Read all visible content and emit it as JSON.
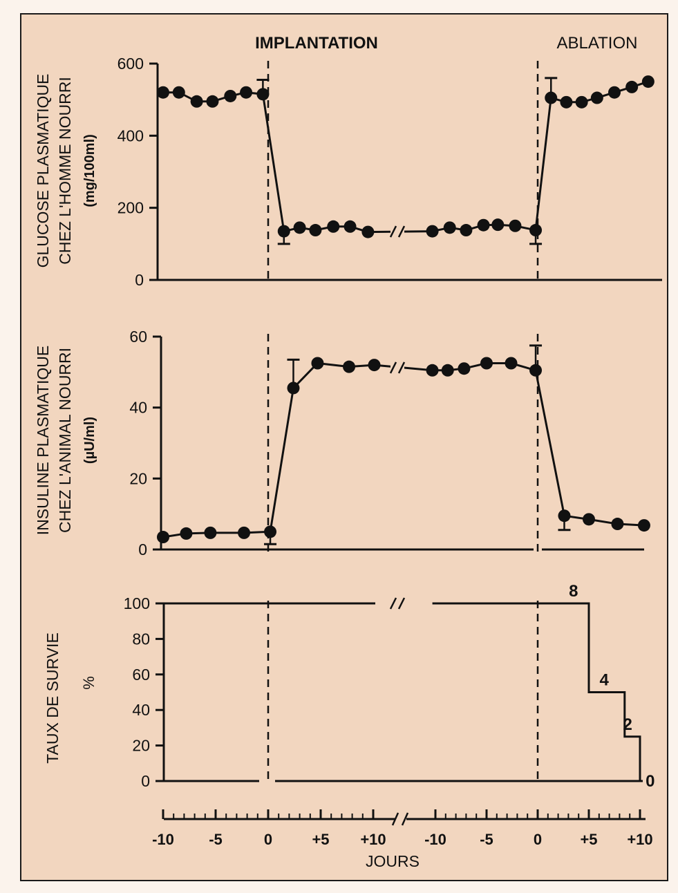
{
  "colors": {
    "background": "#f2d6bf",
    "ink": "#111111",
    "frame": "#1a1a1a"
  },
  "header": {
    "implantation": "IMPLANTATION",
    "ablation": "ABLATION"
  },
  "panels": {
    "glucose": {
      "ylabel_line1": "GLUCOSE PLASMATIQUE",
      "ylabel_line2": "CHEZ L'HOMME NOURRI",
      "unit": "(mg/100ml)"
    },
    "insulin": {
      "ylabel_line1": "INSULINE PLASMATIQUE",
      "ylabel_line2": "CHEZ L'ANIMAL NOURRI",
      "unit": "(µU/ml)"
    },
    "survival": {
      "ylabel_line1": "TAUX DE SURVIE",
      "unit": "%"
    }
  },
  "xaxis": {
    "title": "JOURS",
    "ticks": [
      "-10",
      "-5",
      "0",
      "+5",
      "+10",
      "-10",
      "-5",
      "0",
      "+5",
      "+10"
    ]
  },
  "chart_data": [
    {
      "type": "line",
      "name": "glucose",
      "ylim": [
        0,
        600
      ],
      "yticks": [
        "0",
        "200",
        "400",
        "600"
      ],
      "note": "two-segment time axis with break",
      "points": [
        {
          "seg": 1,
          "x": -10,
          "y": 520
        },
        {
          "seg": 1,
          "x": -8.5,
          "y": 520
        },
        {
          "seg": 1,
          "x": -6.8,
          "y": 495
        },
        {
          "seg": 1,
          "x": -5.3,
          "y": 495
        },
        {
          "seg": 1,
          "x": -3.6,
          "y": 510
        },
        {
          "seg": 1,
          "x": -2.1,
          "y": 520
        },
        {
          "seg": 1,
          "x": -0.5,
          "y": 515
        },
        {
          "seg": 1,
          "x": 1.5,
          "y": 135
        },
        {
          "seg": 1,
          "x": 3.0,
          "y": 145
        },
        {
          "seg": 1,
          "x": 4.5,
          "y": 138
        },
        {
          "seg": 1,
          "x": 6.2,
          "y": 148
        },
        {
          "seg": 1,
          "x": 7.8,
          "y": 148
        },
        {
          "seg": 1,
          "x": 9.5,
          "y": 133
        },
        {
          "seg": 2,
          "x": -10.3,
          "y": 135
        },
        {
          "seg": 2,
          "x": -8.6,
          "y": 145
        },
        {
          "seg": 2,
          "x": -7.0,
          "y": 138
        },
        {
          "seg": 2,
          "x": -5.3,
          "y": 152
        },
        {
          "seg": 2,
          "x": -3.9,
          "y": 153
        },
        {
          "seg": 2,
          "x": -2.2,
          "y": 150
        },
        {
          "seg": 2,
          "x": -0.2,
          "y": 138
        },
        {
          "seg": 2,
          "x": 1.3,
          "y": 505
        },
        {
          "seg": 2,
          "x": 2.8,
          "y": 493
        },
        {
          "seg": 2,
          "x": 4.3,
          "y": 493
        },
        {
          "seg": 2,
          "x": 5.8,
          "y": 505
        },
        {
          "seg": 2,
          "x": 7.5,
          "y": 520
        },
        {
          "seg": 2,
          "x": 9.2,
          "y": 535
        },
        {
          "seg": 2,
          "x": 10.8,
          "y": 550
        }
      ],
      "errorbars": [
        {
          "seg": 1,
          "x": -0.5,
          "y": 515,
          "dir": "up",
          "to": 555
        },
        {
          "seg": 1,
          "x": 1.5,
          "y": 135,
          "dir": "down",
          "to": 100
        },
        {
          "seg": 2,
          "x": -0.2,
          "y": 138,
          "dir": "down",
          "to": 100
        },
        {
          "seg": 2,
          "x": 1.3,
          "y": 505,
          "dir": "up",
          "to": 560
        }
      ]
    },
    {
      "type": "line",
      "name": "insulin",
      "ylim": [
        0,
        60
      ],
      "yticks": [
        "0",
        "20",
        "40",
        "60"
      ],
      "points": [
        {
          "seg": 1,
          "x": -10,
          "y": 3.5
        },
        {
          "seg": 1,
          "x": -7.8,
          "y": 4.5
        },
        {
          "seg": 1,
          "x": -5.5,
          "y": 4.7
        },
        {
          "seg": 1,
          "x": -2.3,
          "y": 4.7
        },
        {
          "seg": 1,
          "x": 0.2,
          "y": 5
        },
        {
          "seg": 1,
          "x": 2.4,
          "y": 45.5
        },
        {
          "seg": 1,
          "x": 4.7,
          "y": 52.5
        },
        {
          "seg": 1,
          "x": 7.7,
          "y": 51.5
        },
        {
          "seg": 1,
          "x": 10.1,
          "y": 52
        },
        {
          "seg": 2,
          "x": -10.3,
          "y": 50.5
        },
        {
          "seg": 2,
          "x": -8.8,
          "y": 50.5
        },
        {
          "seg": 2,
          "x": -7.2,
          "y": 51
        },
        {
          "seg": 2,
          "x": -5.0,
          "y": 52.5
        },
        {
          "seg": 2,
          "x": -2.6,
          "y": 52.5
        },
        {
          "seg": 2,
          "x": -0.2,
          "y": 50.5
        },
        {
          "seg": 2,
          "x": 2.6,
          "y": 9.5
        },
        {
          "seg": 2,
          "x": 5.0,
          "y": 8.5
        },
        {
          "seg": 2,
          "x": 7.8,
          "y": 7.2
        },
        {
          "seg": 2,
          "x": 10.4,
          "y": 6.8
        }
      ],
      "errorbars": [
        {
          "seg": 1,
          "x": 0.2,
          "y": 5,
          "dir": "down",
          "to": 1.5
        },
        {
          "seg": 1,
          "x": 2.4,
          "y": 45.5,
          "dir": "up",
          "to": 53.5
        },
        {
          "seg": 2,
          "x": -0.2,
          "y": 50.5,
          "dir": "up",
          "to": 57.5
        },
        {
          "seg": 2,
          "x": 2.6,
          "y": 9.5,
          "dir": "down",
          "to": 5.5
        }
      ]
    },
    {
      "type": "line",
      "name": "survival",
      "ylim": [
        0,
        100
      ],
      "yticks": [
        "0",
        "20",
        "40",
        "60",
        "80",
        "100"
      ],
      "steps": [
        {
          "seg": 2,
          "x": 0,
          "y": 100
        },
        {
          "seg": 2,
          "x": 5,
          "y": 50
        },
        {
          "seg": 2,
          "x": 8.5,
          "y": 25
        },
        {
          "seg": 2,
          "x": 10,
          "y": 0
        }
      ],
      "annotations": [
        {
          "text": "8",
          "seg": 2,
          "x": 3.5,
          "y": 100
        },
        {
          "text": "4",
          "seg": 2,
          "x": 6.5,
          "y": 50
        },
        {
          "text": "2",
          "seg": 2,
          "x": 8.8,
          "y": 25
        },
        {
          "text": "0",
          "seg": 2,
          "x": 11.0,
          "y": 0
        }
      ]
    }
  ]
}
